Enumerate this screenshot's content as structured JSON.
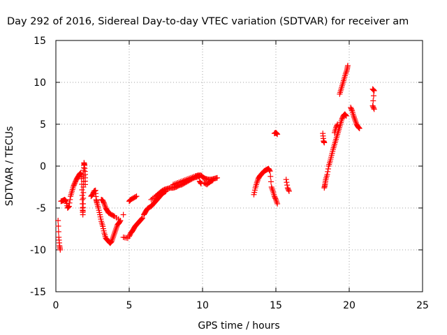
{
  "chart_data": {
    "type": "scatter",
    "title": "Day 292 of 2016, Sidereal Day-to-day VTEC variation (SDTVAR) for receiver am",
    "xlabel": "GPS time / hours",
    "ylabel": "SDTVAR / TECUs",
    "xlim": [
      0,
      25
    ],
    "ylim": [
      -15,
      15
    ],
    "x_ticks": [
      "0",
      "5",
      "10",
      "15",
      "20",
      "25"
    ],
    "y_ticks": [
      "-15",
      "-10",
      "-5",
      "0",
      "5",
      "10",
      "15"
    ],
    "grid": true,
    "marker": "plus",
    "series": [
      {
        "color": "#ff0000",
        "segments": [
          [
            [
              0.15,
              -6.5
            ],
            [
              0.2,
              -8.5
            ],
            [
              0.25,
              -9.5
            ],
            [
              0.3,
              -10.0
            ],
            [
              0.35,
              -4.2
            ],
            [
              0.5,
              -4.1
            ],
            [
              0.6,
              -4.0
            ],
            [
              0.7,
              -4.2
            ],
            [
              0.8,
              -5.0
            ],
            [
              0.9,
              -4.8
            ],
            [
              1.0,
              -3.6
            ],
            [
              1.1,
              -3.0
            ],
            [
              1.2,
              -2.4
            ],
            [
              1.3,
              -2.0
            ],
            [
              1.4,
              -1.6
            ],
            [
              1.5,
              -1.3
            ],
            [
              1.6,
              -1.0
            ],
            [
              1.7,
              -0.8
            ],
            [
              1.75,
              -1.5
            ],
            [
              1.8,
              -3.5
            ],
            [
              1.82,
              -5.0
            ],
            [
              1.84,
              -5.8
            ],
            [
              1.86,
              -4.5
            ],
            [
              1.88,
              -2.5
            ],
            [
              1.9,
              -0.5
            ],
            [
              1.92,
              0.4
            ],
            [
              1.95,
              0.1
            ],
            [
              2.0,
              -1.0
            ],
            [
              2.0,
              -2.2
            ]
          ],
          [
            [
              2.4,
              -3.6
            ],
            [
              2.5,
              -3.4
            ],
            [
              2.6,
              -3.0
            ],
            [
              2.7,
              -2.9
            ],
            [
              2.75,
              -4.0
            ],
            [
              2.8,
              -4.4
            ],
            [
              2.9,
              -5.0
            ],
            [
              3.0,
              -5.8
            ],
            [
              3.1,
              -6.6
            ],
            [
              3.2,
              -7.2
            ],
            [
              3.3,
              -8.0
            ],
            [
              3.4,
              -8.6
            ],
            [
              3.5,
              -8.8
            ],
            [
              3.6,
              -9.0
            ],
            [
              3.7,
              -9.2
            ],
            [
              3.8,
              -9.0
            ],
            [
              3.9,
              -8.5
            ],
            [
              4.0,
              -8.0
            ],
            [
              4.1,
              -7.5
            ],
            [
              4.2,
              -7.0
            ],
            [
              4.3,
              -6.8
            ],
            [
              4.4,
              -6.5
            ],
            [
              4.0,
              -6.0
            ],
            [
              3.8,
              -5.8
            ],
            [
              3.6,
              -5.6
            ],
            [
              3.5,
              -5.3
            ],
            [
              3.4,
              -5.0
            ],
            [
              3.3,
              -4.5
            ],
            [
              3.2,
              -4.1
            ],
            [
              3.1,
              -4.0
            ],
            [
              4.6,
              -5.8
            ],
            [
              4.6,
              -8.5
            ],
            [
              4.9,
              -8.6
            ]
          ],
          [
            [
              5.0,
              -8.4
            ],
            [
              5.1,
              -8.0
            ],
            [
              5.2,
              -7.8
            ],
            [
              5.3,
              -7.5
            ],
            [
              5.4,
              -7.2
            ],
            [
              5.5,
              -7.0
            ],
            [
              5.6,
              -6.8
            ],
            [
              5.7,
              -6.6
            ],
            [
              5.8,
              -6.4
            ],
            [
              5.9,
              -6.2
            ],
            [
              5.0,
              -4.2
            ],
            [
              5.1,
              -4.0
            ],
            [
              5.3,
              -3.8
            ],
            [
              5.5,
              -3.6
            ],
            [
              6.0,
              -5.8
            ],
            [
              6.1,
              -5.5
            ],
            [
              6.2,
              -5.2
            ],
            [
              6.3,
              -5.0
            ],
            [
              6.5,
              -4.8
            ],
            [
              6.6,
              -4.6
            ],
            [
              6.7,
              -4.4
            ],
            [
              6.8,
              -4.2
            ],
            [
              6.9,
              -4.0
            ],
            [
              7.0,
              -3.8
            ],
            [
              7.1,
              -3.6
            ],
            [
              7.2,
              -3.4
            ],
            [
              7.3,
              -3.2
            ],
            [
              7.4,
              -3.1
            ],
            [
              7.5,
              -3.0
            ],
            [
              6.5,
              -4.0
            ],
            [
              6.8,
              -3.6
            ],
            [
              7.0,
              -3.3
            ],
            [
              7.2,
              -3.0
            ],
            [
              7.4,
              -2.8
            ],
            [
              7.6,
              -2.7
            ],
            [
              7.8,
              -2.6
            ],
            [
              8.0,
              -2.6
            ],
            [
              8.2,
              -2.5
            ],
            [
              8.4,
              -2.3
            ],
            [
              8.6,
              -2.2
            ],
            [
              8.8,
              -2.0
            ],
            [
              9.0,
              -1.8
            ],
            [
              9.2,
              -1.6
            ],
            [
              9.4,
              -1.4
            ],
            [
              9.6,
              -1.3
            ],
            [
              9.8,
              -1.2
            ],
            [
              8.0,
              -2.2
            ],
            [
              8.3,
              -2.0
            ],
            [
              8.6,
              -1.8
            ],
            [
              8.9,
              -1.6
            ],
            [
              9.2,
              -1.4
            ],
            [
              9.5,
              -1.2
            ],
            [
              9.7,
              -1.1
            ],
            [
              9.9,
              -1.1
            ],
            [
              10.0,
              -1.3
            ],
            [
              10.2,
              -1.5
            ],
            [
              10.4,
              -1.6
            ],
            [
              10.6,
              -1.6
            ],
            [
              10.8,
              -1.5
            ],
            [
              11.0,
              -1.4
            ],
            [
              10.1,
              -2.0
            ],
            [
              10.3,
              -2.2
            ],
            [
              10.5,
              -1.9
            ],
            [
              10.7,
              -1.7
            ],
            [
              9.8,
              -1.8
            ],
            [
              9.9,
              -2.1
            ]
          ],
          [
            [
              13.5,
              -3.4
            ],
            [
              13.6,
              -2.6
            ],
            [
              13.7,
              -2.0
            ],
            [
              13.8,
              -1.5
            ],
            [
              13.9,
              -1.2
            ],
            [
              14.0,
              -1.0
            ],
            [
              14.1,
              -0.8
            ],
            [
              14.2,
              -0.6
            ],
            [
              14.3,
              -0.5
            ],
            [
              14.4,
              -0.4
            ],
            [
              14.5,
              -0.3
            ],
            [
              14.6,
              -0.6
            ],
            [
              14.7,
              -2.5
            ],
            [
              14.8,
              -3.0
            ],
            [
              14.9,
              -3.6
            ],
            [
              15.0,
              -4.0
            ],
            [
              15.1,
              -4.5
            ],
            [
              14.9,
              3.9
            ],
            [
              15.0,
              4.0
            ],
            [
              15.1,
              3.8
            ],
            [
              15.7,
              -1.6
            ],
            [
              15.8,
              -2.6
            ],
            [
              15.9,
              -3.0
            ]
          ],
          [
            [
              18.2,
              3.9
            ],
            [
              18.25,
              3.0
            ],
            [
              18.3,
              2.8
            ],
            [
              18.3,
              -2.6
            ],
            [
              18.35,
              -2.2
            ],
            [
              18.4,
              -1.6
            ],
            [
              18.5,
              -1.0
            ],
            [
              18.6,
              0.0
            ],
            [
              18.7,
              0.6
            ],
            [
              18.8,
              1.3
            ],
            [
              18.9,
              2.0
            ],
            [
              19.0,
              2.6
            ],
            [
              19.1,
              3.2
            ],
            [
              19.2,
              3.8
            ],
            [
              19.3,
              4.4
            ],
            [
              19.4,
              5.0
            ],
            [
              19.5,
              5.6
            ],
            [
              19.6,
              6.0
            ],
            [
              19.7,
              6.2
            ],
            [
              19.8,
              6.0
            ],
            [
              19.0,
              4.0
            ],
            [
              19.1,
              4.6
            ],
            [
              19.2,
              5.0
            ],
            [
              19.35,
              8.6
            ],
            [
              19.45,
              9.2
            ],
            [
              19.55,
              9.8
            ],
            [
              19.65,
              10.4
            ],
            [
              19.75,
              11.0
            ],
            [
              19.85,
              11.5
            ],
            [
              19.9,
              12.0
            ],
            [
              20.1,
              7.0
            ],
            [
              20.2,
              6.6
            ],
            [
              20.3,
              6.0
            ],
            [
              20.4,
              5.5
            ],
            [
              20.5,
              5.0
            ],
            [
              20.6,
              4.7
            ],
            [
              20.7,
              4.5
            ],
            [
              21.6,
              9.2
            ],
            [
              21.7,
              9.0
            ],
            [
              21.6,
              7.2
            ],
            [
              21.7,
              6.8
            ]
          ]
        ]
      }
    ]
  }
}
